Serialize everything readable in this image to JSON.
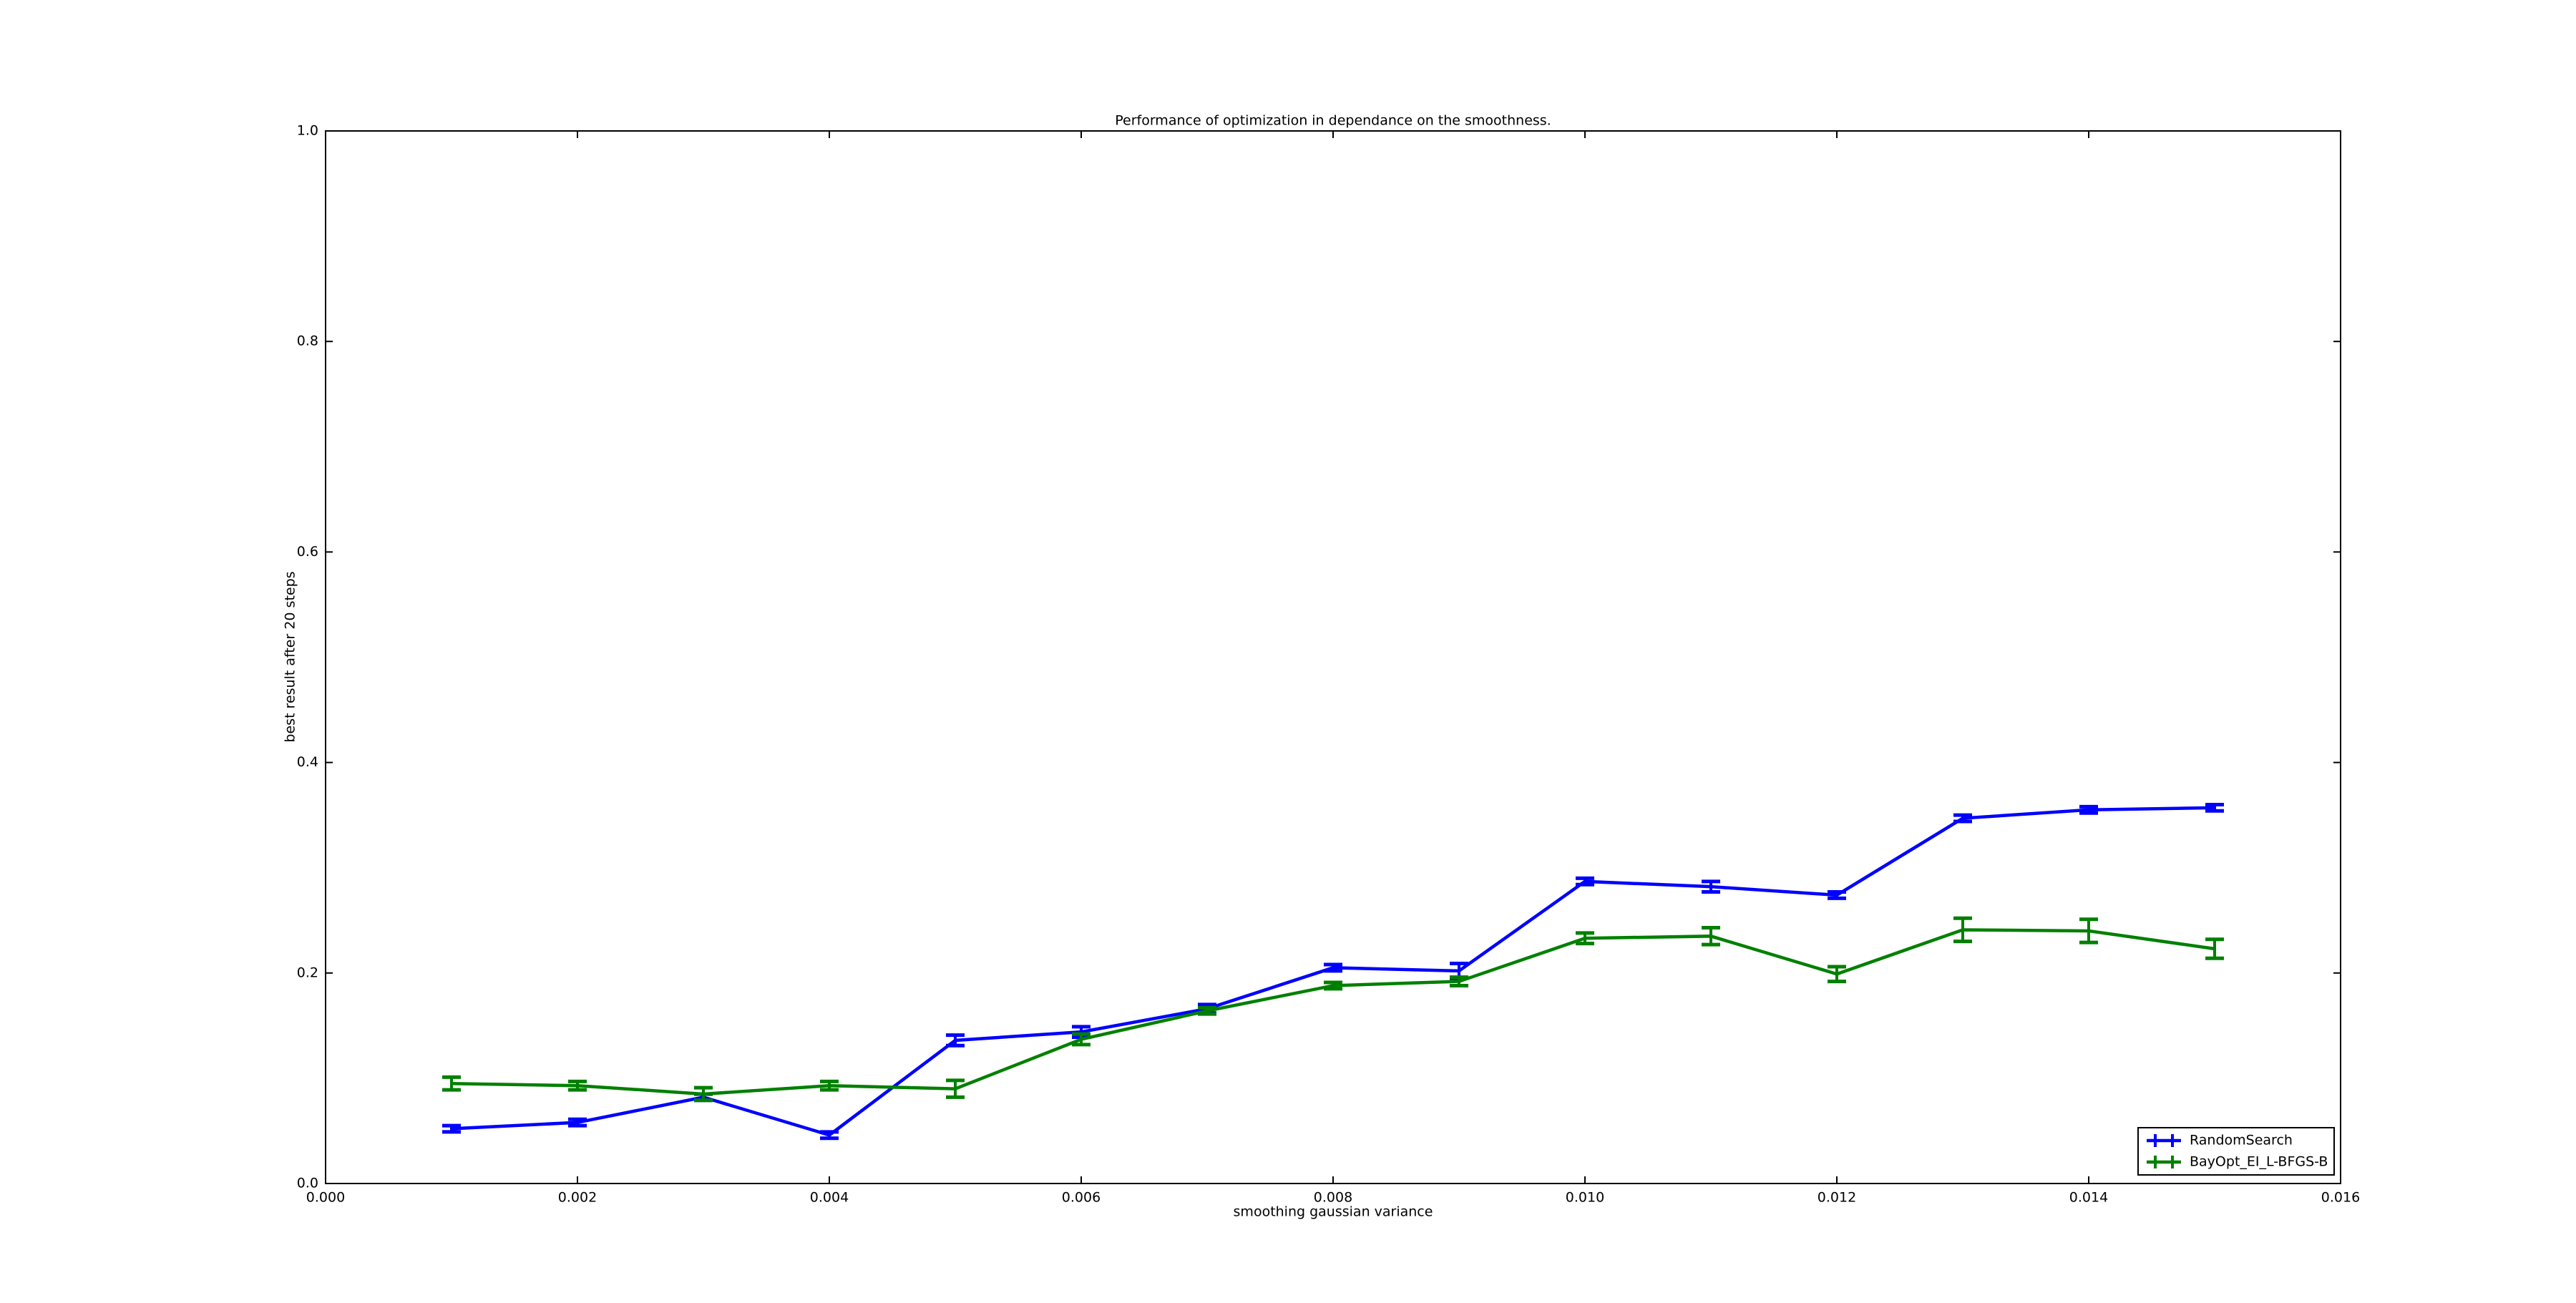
{
  "chart_data": {
    "type": "errorbar-line",
    "title": "Performance of optimization in dependance on the smoothness.",
    "x_label": "smoothing gaussian variance",
    "y_label": "best result after 20 steps",
    "x": [
      0.001,
      0.002,
      0.003,
      0.004,
      0.005,
      0.006,
      0.007,
      0.008,
      0.009,
      0.01,
      0.011,
      0.012,
      0.013,
      0.014,
      0.015
    ],
    "series": [
      {
        "name": "RandomSearch",
        "color": "#0000ff",
        "values": [
          0.052,
          0.058,
          0.082,
          0.046,
          0.136,
          0.144,
          0.166,
          0.205,
          0.202,
          0.287,
          0.282,
          0.274,
          0.347,
          0.355,
          0.357
        ],
        "errors": [
          0.003,
          0.003,
          0.003,
          0.003,
          0.005,
          0.005,
          0.004,
          0.003,
          0.007,
          0.003,
          0.005,
          0.003,
          0.003,
          0.003,
          0.003
        ]
      },
      {
        "name": "BayOpt_EI_L-BFGS-B",
        "color": "#008000",
        "values": [
          0.095,
          0.093,
          0.085,
          0.093,
          0.09,
          0.137,
          0.164,
          0.188,
          0.192,
          0.233,
          0.235,
          0.199,
          0.241,
          0.24,
          0.223
        ],
        "errors": [
          0.006,
          0.004,
          0.006,
          0.004,
          0.008,
          0.005,
          0.003,
          0.003,
          0.004,
          0.005,
          0.008,
          0.007,
          0.011,
          0.011,
          0.009
        ]
      }
    ],
    "xlim": [
      0,
      0.016
    ],
    "ylim": [
      0,
      1
    ],
    "xticks": [
      {
        "value": 0,
        "label": "0.000"
      },
      {
        "value": 0.002,
        "label": "0.002"
      },
      {
        "value": 0.004,
        "label": "0.004"
      },
      {
        "value": 0.006,
        "label": "0.006"
      },
      {
        "value": 0.008,
        "label": "0.008"
      },
      {
        "value": 0.01,
        "label": "0.010"
      },
      {
        "value": 0.012,
        "label": "0.012"
      },
      {
        "value": 0.014,
        "label": "0.014"
      },
      {
        "value": 0.016,
        "label": "0.016"
      }
    ],
    "yticks": [
      {
        "value": 0,
        "label": "0.0"
      },
      0.2,
      0.4,
      0.6,
      0.8,
      {
        "value": 1,
        "label": "1.0"
      }
    ],
    "legend": "lower right",
    "grid": false
  }
}
